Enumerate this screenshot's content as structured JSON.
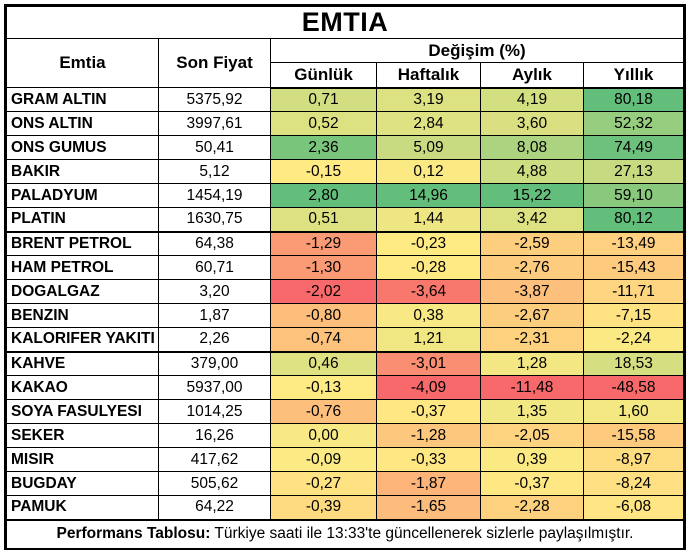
{
  "title": "EMTIA",
  "header": {
    "commodity": "Emtia",
    "last_price": "Son Fiyat",
    "change_group": "Değişim (%)",
    "periods": [
      "Günlük",
      "Haftalık",
      "Aylık",
      "Yıllık"
    ]
  },
  "colors": {
    "scale_min_red": "#F8696B",
    "scale_mid_yellow": "#FFEB84",
    "scale_max_green": "#63BE7B",
    "border": "#000000",
    "background": "#FFFFFF"
  },
  "chart_data": {
    "type": "table",
    "title": "EMTIA",
    "columns": [
      "Emtia",
      "Son Fiyat",
      "Günlük",
      "Haftalık",
      "Aylık",
      "Yıllık"
    ],
    "group_header": "Değişim (%)",
    "color_scale": {
      "min": "#F8696B",
      "mid": "#FFEB84",
      "max": "#63BE7B",
      "midpoint": "median-per-column",
      "applies_to": "change columns only"
    },
    "rows": [
      {
        "name": "GRAM ALTIN",
        "last_price": "5375,92",
        "changes": [
          "0,71",
          "3,19",
          "4,19",
          "80,18"
        ]
      },
      {
        "name": "ONS ALTIN",
        "last_price": "3997,61",
        "changes": [
          "0,52",
          "2,84",
          "3,60",
          "52,32"
        ]
      },
      {
        "name": "ONS GUMUS",
        "last_price": "50,41",
        "changes": [
          "2,36",
          "5,09",
          "8,08",
          "74,49"
        ]
      },
      {
        "name": "BAKIR",
        "last_price": "5,12",
        "changes": [
          "-0,15",
          "0,12",
          "4,88",
          "27,13"
        ]
      },
      {
        "name": "PALADYUM",
        "last_price": "1454,19",
        "changes": [
          "2,80",
          "14,96",
          "15,22",
          "59,10"
        ]
      },
      {
        "name": "PLATIN",
        "last_price": "1630,75",
        "changes": [
          "0,51",
          "1,44",
          "3,42",
          "80,12"
        ]
      },
      {
        "name": "BRENT PETROL",
        "last_price": "64,38",
        "changes": [
          "-1,29",
          "-0,23",
          "-2,59",
          "-13,49"
        ]
      },
      {
        "name": "HAM PETROL",
        "last_price": "60,71",
        "changes": [
          "-1,30",
          "-0,28",
          "-2,76",
          "-15,43"
        ]
      },
      {
        "name": "DOGALGAZ",
        "last_price": "3,20",
        "changes": [
          "-2,02",
          "-3,64",
          "-3,87",
          "-11,71"
        ]
      },
      {
        "name": "BENZIN",
        "last_price": "1,87",
        "changes": [
          "-0,80",
          "0,38",
          "-2,67",
          "-7,15"
        ]
      },
      {
        "name": "KALORIFER YAKITI",
        "last_price": "2,26",
        "changes": [
          "-0,74",
          "1,21",
          "-2,31",
          "-2,24"
        ]
      },
      {
        "name": "KAHVE",
        "last_price": "379,00",
        "changes": [
          "0,46",
          "-3,01",
          "1,28",
          "18,53"
        ]
      },
      {
        "name": "KAKAO",
        "last_price": "5937,00",
        "changes": [
          "-0,13",
          "-4,09",
          "-11,48",
          "-48,58"
        ]
      },
      {
        "name": "SOYA FASULYESI",
        "last_price": "1014,25",
        "changes": [
          "-0,76",
          "-0,37",
          "1,35",
          "1,60"
        ]
      },
      {
        "name": "SEKER",
        "last_price": "16,26",
        "changes": [
          "0,00",
          "-1,28",
          "-2,05",
          "-15,58"
        ]
      },
      {
        "name": "MISIR",
        "last_price": "417,62",
        "changes": [
          "-0,09",
          "-0,33",
          "0,39",
          "-8,97"
        ]
      },
      {
        "name": "BUGDAY",
        "last_price": "505,62",
        "changes": [
          "-0,27",
          "-1,87",
          "-0,37",
          "-8,24"
        ]
      },
      {
        "name": "PAMUK",
        "last_price": "64,22",
        "changes": [
          "-0,39",
          "-1,65",
          "-2,28",
          "-6,08"
        ]
      }
    ],
    "group_separators_after": [
      "PLATIN",
      "KALORIFER YAKITI"
    ]
  },
  "footer": {
    "bold": "Performans Tablosu:",
    "text": " Türkiye saati ile 13:33'te güncellenerek sizlerle paylaşılmıştır."
  }
}
